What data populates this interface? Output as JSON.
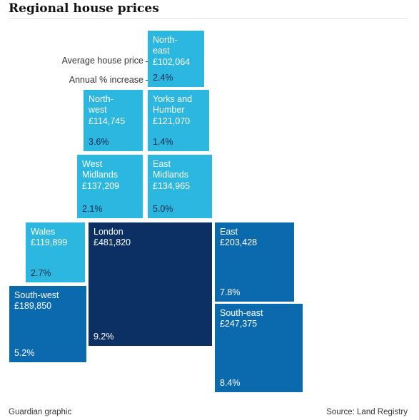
{
  "title": "Regional house prices",
  "key": {
    "price_label": "Average house price",
    "change_label": "Annual % increase"
  },
  "footer": {
    "credit": "Guardian graphic",
    "source": "Source: Land Registry"
  },
  "colors": {
    "light": "#2bb7e0",
    "medium": "#0b69ae",
    "dark": "#0c3063"
  },
  "chart_data": {
    "type": "table",
    "title": "Regional house prices",
    "columns": [
      "Average house price",
      "Annual % increase"
    ],
    "regions": [
      {
        "key": "north_east",
        "name": "North-\neast",
        "price": "£102,064",
        "change": "2.4%",
        "price_value": 102064,
        "change_value": 2.4
      },
      {
        "key": "north_west",
        "name": "North-\nwest",
        "price": "£114,745",
        "change": "3.6%",
        "price_value": 114745,
        "change_value": 3.6
      },
      {
        "key": "yorks",
        "name": "Yorks and\nHumber",
        "price": "£121,070",
        "change": "1.4%",
        "price_value": 121070,
        "change_value": 1.4
      },
      {
        "key": "west_midlands",
        "name": "West\nMidlands",
        "price": "£137,209",
        "change": "2.1%",
        "price_value": 137209,
        "change_value": 2.1
      },
      {
        "key": "east_midlands",
        "name": "East\nMidlands",
        "price": "£134,965",
        "change": "5.0%",
        "price_value": 134965,
        "change_value": 5.0
      },
      {
        "key": "wales",
        "name": "Wales",
        "price": "£119,899",
        "change": "2.7%",
        "price_value": 119899,
        "change_value": 2.7
      },
      {
        "key": "london",
        "name": "London",
        "price": "£481,820",
        "change": "9.2%",
        "price_value": 481820,
        "change_value": 9.2
      },
      {
        "key": "east",
        "name": "East",
        "price": "£203,428",
        "change": "7.8%",
        "price_value": 203428,
        "change_value": 7.8
      },
      {
        "key": "south_west",
        "name": "South-west",
        "price": "£189,850",
        "change": "5.2%",
        "price_value": 189850,
        "change_value": 5.2
      },
      {
        "key": "south_east",
        "name": "South-east",
        "price": "£247,375",
        "change": "8.4%",
        "price_value": 247375,
        "change_value": 8.4
      }
    ]
  }
}
